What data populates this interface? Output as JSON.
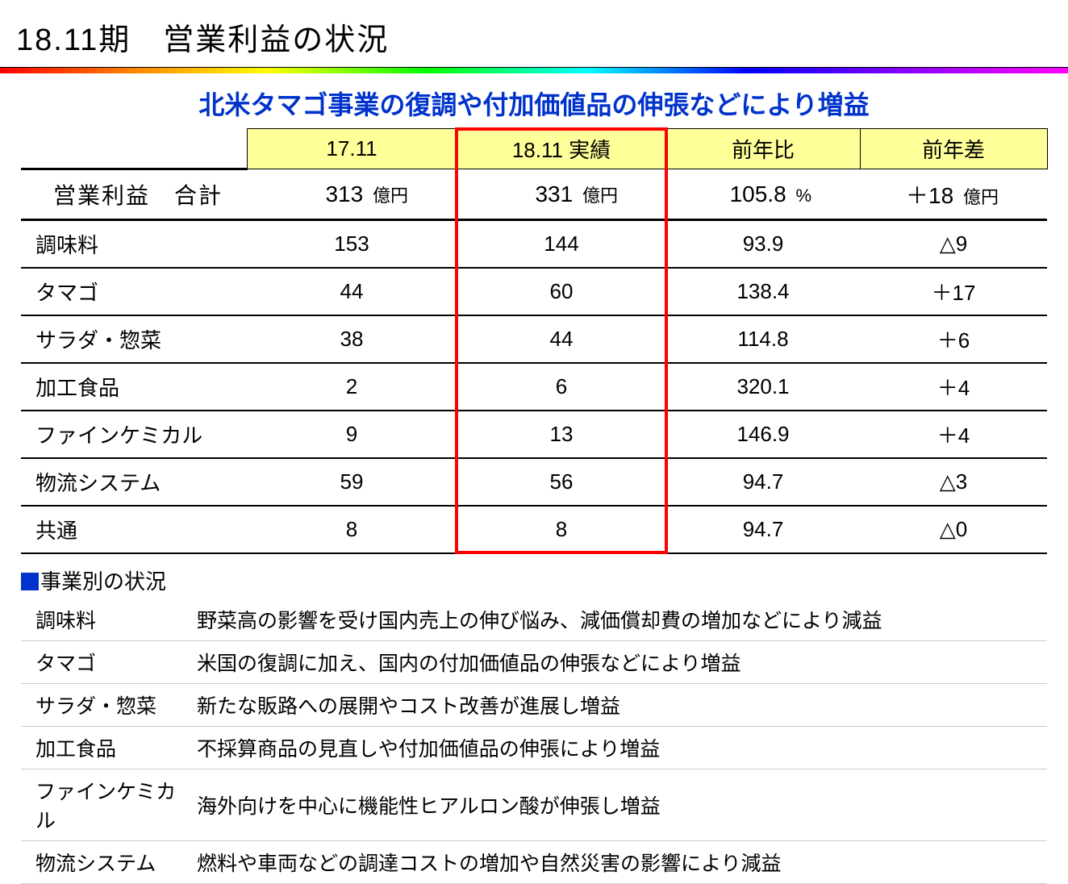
{
  "page": {
    "title": "18.11期　営業利益の状況",
    "subtitle": "北米タマゴ事業の復調や付加価値品の伸張などにより増益",
    "subtitle_color": "#0033cc"
  },
  "colors": {
    "header_bg": "#ffff99",
    "highlight_border": "#ff0000",
    "square": "#0033cc",
    "row_sep": "#cccccc"
  },
  "table": {
    "columns": [
      "",
      "17.11",
      "18.11 実績",
      "前年比",
      "前年差"
    ],
    "col_yellow": [
      false,
      true,
      true,
      true,
      true
    ],
    "highlight_col_index": 2,
    "total_row": {
      "label": "営業利益　合計",
      "col1_val": "313",
      "col1_unit": "億円",
      "col2_val": "331",
      "col2_unit": "億円",
      "ratio_val": "105.8",
      "ratio_unit": "%",
      "diff_val": "＋18",
      "diff_unit": "億円"
    },
    "rows": [
      {
        "label": "調味料",
        "c1": "153",
        "c2": "144",
        "ratio": "93.9",
        "diff": "△9"
      },
      {
        "label": "タマゴ",
        "c1": "44",
        "c2": "60",
        "ratio": "138.4",
        "diff": "＋17"
      },
      {
        "label": "サラダ・惣菜",
        "c1": "38",
        "c2": "44",
        "ratio": "114.8",
        "diff": "＋6"
      },
      {
        "label": "加工食品",
        "c1": "2",
        "c2": "6",
        "ratio": "320.1",
        "diff": "＋4"
      },
      {
        "label": "ファインケミカル",
        "c1": "9",
        "c2": "13",
        "ratio": "146.9",
        "diff": "＋4"
      },
      {
        "label": "物流システム",
        "c1": "59",
        "c2": "56",
        "ratio": "94.7",
        "diff": "△3"
      },
      {
        "label": "共通",
        "c1": "8",
        "c2": "8",
        "ratio": "94.7",
        "diff": "△0"
      }
    ]
  },
  "situation": {
    "title": "事業別の状況",
    "items": [
      {
        "label": "調味料",
        "text": "野菜高の影響を受け国内売上の伸び悩み、減価償却費の増加などにより減益"
      },
      {
        "label": "タマゴ",
        "text": "米国の復調に加え、国内の付加価値品の伸張などにより増益"
      },
      {
        "label": "サラダ・惣菜",
        "text": "新たな販路への展開やコスト改善が進展し増益"
      },
      {
        "label": "加工食品",
        "text": "不採算商品の見直しや付加価値品の伸張により増益"
      },
      {
        "label": "ファインケミカル",
        "text": "海外向けを中心に機能性ヒアルロン酸が伸張し増益"
      },
      {
        "label": "物流システム",
        "text": "燃料や車両などの調達コストの増加や自然災害の影響により減益"
      }
    ]
  }
}
